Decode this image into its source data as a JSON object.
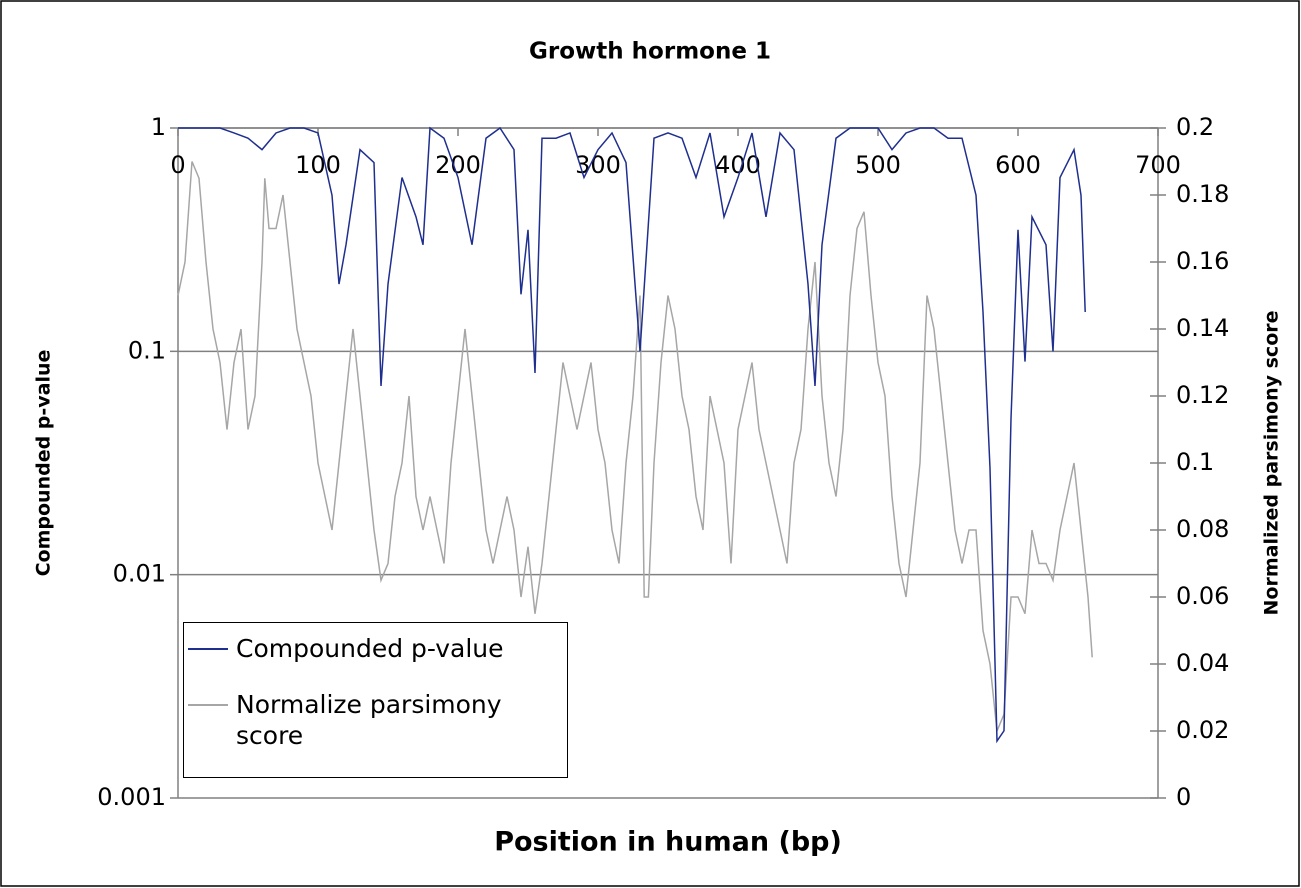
{
  "chart_data": {
    "type": "line",
    "title": "Growth hormone 1",
    "x_label": "Position in human (bp)",
    "y_label": "Compounded p-value",
    "y2_label": "Normalized parsimony score",
    "xlim": [
      0,
      700
    ],
    "xticks": [
      0,
      100,
      200,
      300,
      400,
      500,
      600,
      700
    ],
    "x_axis_position": "top",
    "ylim": [
      0.001,
      1
    ],
    "yticks": [
      0.001,
      0.01,
      0.1,
      1
    ],
    "y_log": true,
    "y2lim": [
      0,
      0.2
    ],
    "y2ticks": [
      0,
      0.02,
      0.04,
      0.06,
      0.08,
      0.1,
      0.12,
      0.14,
      0.16,
      0.18,
      0.2
    ],
    "grid": true,
    "legend": "lower left",
    "series": [
      {
        "name": "Compounded p-value",
        "color": "#1f2f8f",
        "x": [
          0,
          10,
          20,
          30,
          40,
          50,
          60,
          70,
          80,
          90,
          100,
          110,
          115,
          120,
          130,
          140,
          145,
          150,
          160,
          170,
          175,
          180,
          190,
          200,
          210,
          220,
          230,
          240,
          245,
          250,
          255,
          260,
          270,
          280,
          290,
          300,
          310,
          320,
          330,
          340,
          350,
          360,
          370,
          380,
          390,
          400,
          410,
          420,
          430,
          440,
          450,
          455,
          460,
          470,
          480,
          490,
          500,
          510,
          520,
          530,
          540,
          550,
          560,
          570,
          575,
          580,
          585,
          590,
          595,
          600,
          605,
          610,
          620,
          625,
          630,
          640,
          645,
          648
        ],
        "values": [
          1,
          1,
          1,
          1,
          0.95,
          0.9,
          0.8,
          0.95,
          1,
          1,
          0.95,
          0.5,
          0.2,
          0.3,
          0.8,
          0.7,
          0.07,
          0.2,
          0.6,
          0.4,
          0.3,
          1,
          0.9,
          0.6,
          0.3,
          0.9,
          1,
          0.8,
          0.18,
          0.35,
          0.08,
          0.9,
          0.9,
          0.95,
          0.6,
          0.8,
          0.95,
          0.7,
          0.1,
          0.9,
          0.95,
          0.9,
          0.6,
          0.95,
          0.4,
          0.6,
          0.95,
          0.4,
          0.95,
          0.8,
          0.2,
          0.07,
          0.3,
          0.9,
          1,
          1,
          1,
          0.8,
          0.95,
          1,
          1,
          0.9,
          0.9,
          0.5,
          0.15,
          0.03,
          0.0018,
          0.002,
          0.05,
          0.35,
          0.09,
          0.4,
          0.3,
          0.1,
          0.6,
          0.8,
          0.5,
          0.15
        ]
      },
      {
        "name": "Normalize parsimony score",
        "color": "#a6a6a6",
        "axis": "y2",
        "x": [
          0,
          5,
          10,
          15,
          20,
          25,
          30,
          35,
          40,
          45,
          50,
          55,
          60,
          62,
          65,
          70,
          75,
          80,
          85,
          90,
          95,
          100,
          105,
          110,
          115,
          120,
          125,
          130,
          135,
          140,
          145,
          150,
          155,
          160,
          165,
          170,
          175,
          180,
          185,
          190,
          195,
          200,
          205,
          210,
          215,
          220,
          225,
          230,
          235,
          240,
          245,
          250,
          255,
          260,
          265,
          270,
          275,
          280,
          285,
          290,
          295,
          300,
          305,
          310,
          315,
          320,
          325,
          330,
          333,
          336,
          340,
          345,
          350,
          355,
          360,
          365,
          370,
          375,
          380,
          385,
          390,
          395,
          400,
          405,
          410,
          415,
          420,
          425,
          430,
          435,
          440,
          445,
          450,
          455,
          460,
          465,
          470,
          475,
          480,
          485,
          490,
          495,
          500,
          505,
          510,
          515,
          520,
          525,
          530,
          535,
          540,
          545,
          550,
          555,
          560,
          565,
          570,
          575,
          580,
          585,
          590,
          595,
          600,
          605,
          610,
          615,
          620,
          625,
          630,
          635,
          640,
          645,
          650,
          653
        ],
        "values": [
          0.15,
          0.16,
          0.19,
          0.185,
          0.16,
          0.14,
          0.13,
          0.11,
          0.13,
          0.14,
          0.11,
          0.12,
          0.16,
          0.185,
          0.17,
          0.17,
          0.18,
          0.16,
          0.14,
          0.13,
          0.12,
          0.1,
          0.09,
          0.08,
          0.1,
          0.12,
          0.14,
          0.12,
          0.1,
          0.08,
          0.065,
          0.07,
          0.09,
          0.1,
          0.12,
          0.09,
          0.08,
          0.09,
          0.08,
          0.07,
          0.1,
          0.12,
          0.14,
          0.12,
          0.1,
          0.08,
          0.07,
          0.08,
          0.09,
          0.08,
          0.06,
          0.075,
          0.055,
          0.07,
          0.09,
          0.11,
          0.13,
          0.12,
          0.11,
          0.12,
          0.13,
          0.11,
          0.1,
          0.08,
          0.07,
          0.1,
          0.12,
          0.15,
          0.06,
          0.06,
          0.1,
          0.13,
          0.15,
          0.14,
          0.12,
          0.11,
          0.09,
          0.08,
          0.12,
          0.11,
          0.1,
          0.07,
          0.11,
          0.12,
          0.13,
          0.11,
          0.1,
          0.09,
          0.08,
          0.07,
          0.1,
          0.11,
          0.14,
          0.16,
          0.12,
          0.1,
          0.09,
          0.11,
          0.15,
          0.17,
          0.175,
          0.15,
          0.13,
          0.12,
          0.09,
          0.07,
          0.06,
          0.08,
          0.1,
          0.15,
          0.14,
          0.12,
          0.1,
          0.08,
          0.07,
          0.08,
          0.08,
          0.05,
          0.04,
          0.02,
          0.025,
          0.06,
          0.06,
          0.055,
          0.08,
          0.07,
          0.07,
          0.065,
          0.08,
          0.09,
          0.1,
          0.08,
          0.06,
          0.042
        ]
      }
    ]
  }
}
